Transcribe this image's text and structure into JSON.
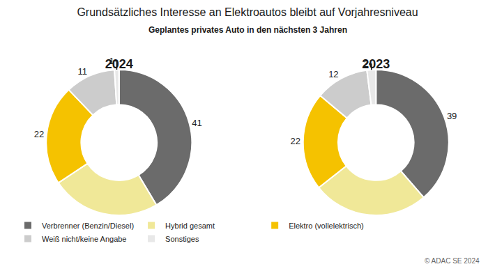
{
  "title": "Grundsätzliches Interesse an Elektroautos bleibt auf Vorjahresniveau",
  "subtitle": "Geplantes privates Auto in den nächsten 3 Jahren",
  "annotations": [
    "© ADAC SE 2024"
  ],
  "chart_data": [
    {
      "type": "pie",
      "title": "2024",
      "categories": [
        "Verbrenner (Benzin/Diesel)",
        "Hybrid gesamt",
        "Elektro (vollelektrisch)",
        "Weiß nicht/keine Angabe",
        "Sonstiges"
      ],
      "values": [
        41,
        24,
        22,
        11,
        1
      ],
      "colors": [
        "#6b6b6b",
        "#f0e898",
        "#f5c200",
        "#cccccc",
        "#e8e8e8"
      ],
      "data_labels": true,
      "legend": "bottom"
    },
    {
      "type": "pie",
      "title": "2023",
      "categories": [
        "Verbrenner (Benzin/Diesel)",
        "Hybrid gesamt",
        "Elektro (vollelektrisch)",
        "Weiß nicht/keine Angabe",
        "Sonstiges"
      ],
      "values": [
        39,
        26,
        22,
        12,
        2
      ],
      "colors": [
        "#6b6b6b",
        "#f0e898",
        "#f5c200",
        "#cccccc",
        "#e8e8e8"
      ],
      "data_labels": true,
      "legend": "bottom"
    }
  ]
}
